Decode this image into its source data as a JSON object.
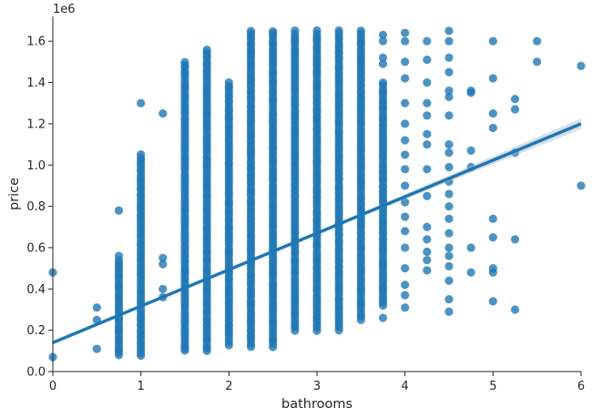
{
  "chart_data": {
    "type": "scatter",
    "title": "",
    "xlabel": "bathrooms",
    "ylabel": "price",
    "y_offset_label": "1e6",
    "xlim": [
      0,
      6
    ],
    "ylim": [
      0,
      1.72
    ],
    "x_ticks": [
      0,
      1,
      2,
      3,
      4,
      5,
      6
    ],
    "x_tick_labels": [
      "0",
      "1",
      "2",
      "3",
      "4",
      "5",
      "6"
    ],
    "y_ticks": [
      0.0,
      0.2,
      0.4,
      0.6,
      0.8,
      1.0,
      1.2,
      1.4,
      1.6
    ],
    "y_tick_labels": [
      "0.0",
      "0.2",
      "0.4",
      "0.6",
      "0.8",
      "1.0",
      "1.2",
      "1.4",
      "1.6"
    ],
    "grid": false,
    "legend": "none",
    "point_color": "#1f77b4",
    "line_color": "#1f77b4",
    "columns": [
      {
        "x": 0.75,
        "min": 0.08,
        "max": 0.54
      },
      {
        "x": 1.0,
        "min": 0.075,
        "max": 1.05
      },
      {
        "x": 1.5,
        "min": 0.1,
        "max": 1.5
      },
      {
        "x": 1.75,
        "min": 0.1,
        "max": 1.56
      },
      {
        "x": 2.0,
        "min": 0.13,
        "max": 1.4
      },
      {
        "x": 2.25,
        "min": 0.12,
        "max": 1.65
      },
      {
        "x": 2.5,
        "min": 0.12,
        "max": 1.65
      },
      {
        "x": 2.75,
        "min": 0.2,
        "max": 1.65
      },
      {
        "x": 3.0,
        "min": 0.2,
        "max": 1.65
      },
      {
        "x": 3.25,
        "min": 0.2,
        "max": 1.65
      },
      {
        "x": 3.5,
        "min": 0.25,
        "max": 1.65
      },
      {
        "x": 3.75,
        "min": 0.32,
        "max": 1.4
      }
    ],
    "points": [
      {
        "x": 0.0,
        "y": 0.48
      },
      {
        "x": 0.0,
        "y": 0.07
      },
      {
        "x": 0.5,
        "y": 0.31
      },
      {
        "x": 0.5,
        "y": 0.25
      },
      {
        "x": 0.5,
        "y": 0.11
      },
      {
        "x": 0.75,
        "y": 0.78
      },
      {
        "x": 0.75,
        "y": 0.56
      },
      {
        "x": 1.0,
        "y": 1.3
      },
      {
        "x": 1.25,
        "y": 1.25
      },
      {
        "x": 1.25,
        "y": 0.55
      },
      {
        "x": 1.25,
        "y": 0.52
      },
      {
        "x": 1.25,
        "y": 0.4
      },
      {
        "x": 1.25,
        "y": 0.36
      },
      {
        "x": 3.75,
        "y": 1.63
      },
      {
        "x": 3.75,
        "y": 1.6
      },
      {
        "x": 3.75,
        "y": 1.52
      },
      {
        "x": 3.75,
        "y": 1.49
      },
      {
        "x": 3.75,
        "y": 0.26
      },
      {
        "x": 4.0,
        "y": 1.64
      },
      {
        "x": 4.0,
        "y": 1.6
      },
      {
        "x": 4.0,
        "y": 1.5
      },
      {
        "x": 4.0,
        "y": 1.42
      },
      {
        "x": 4.0,
        "y": 1.3
      },
      {
        "x": 4.0,
        "y": 1.2
      },
      {
        "x": 4.0,
        "y": 1.12
      },
      {
        "x": 4.0,
        "y": 1.05
      },
      {
        "x": 4.0,
        "y": 0.98
      },
      {
        "x": 4.0,
        "y": 0.9
      },
      {
        "x": 4.0,
        "y": 0.82
      },
      {
        "x": 4.0,
        "y": 0.75
      },
      {
        "x": 4.0,
        "y": 0.68
      },
      {
        "x": 4.0,
        "y": 0.6
      },
      {
        "x": 4.0,
        "y": 0.5
      },
      {
        "x": 4.0,
        "y": 0.42
      },
      {
        "x": 4.0,
        "y": 0.37
      },
      {
        "x": 4.0,
        "y": 0.31
      },
      {
        "x": 4.25,
        "y": 1.6
      },
      {
        "x": 4.25,
        "y": 1.51
      },
      {
        "x": 4.25,
        "y": 1.4
      },
      {
        "x": 4.25,
        "y": 1.3
      },
      {
        "x": 4.25,
        "y": 1.24
      },
      {
        "x": 4.25,
        "y": 1.15
      },
      {
        "x": 4.25,
        "y": 1.1
      },
      {
        "x": 4.25,
        "y": 0.98
      },
      {
        "x": 4.25,
        "y": 0.85
      },
      {
        "x": 4.25,
        "y": 0.7
      },
      {
        "x": 4.25,
        "y": 0.64
      },
      {
        "x": 4.25,
        "y": 0.58
      },
      {
        "x": 4.25,
        "y": 0.54
      },
      {
        "x": 4.25,
        "y": 0.49
      },
      {
        "x": 4.5,
        "y": 1.65
      },
      {
        "x": 4.5,
        "y": 1.6
      },
      {
        "x": 4.5,
        "y": 1.52
      },
      {
        "x": 4.5,
        "y": 1.45
      },
      {
        "x": 4.5,
        "y": 1.36
      },
      {
        "x": 4.5,
        "y": 1.33
      },
      {
        "x": 4.5,
        "y": 1.24
      },
      {
        "x": 4.5,
        "y": 1.1
      },
      {
        "x": 4.5,
        "y": 1.06
      },
      {
        "x": 4.5,
        "y": 0.99
      },
      {
        "x": 4.5,
        "y": 0.92
      },
      {
        "x": 4.5,
        "y": 0.86
      },
      {
        "x": 4.5,
        "y": 0.8
      },
      {
        "x": 4.5,
        "y": 0.74
      },
      {
        "x": 4.5,
        "y": 0.67
      },
      {
        "x": 4.5,
        "y": 0.6
      },
      {
        "x": 4.5,
        "y": 0.56
      },
      {
        "x": 4.5,
        "y": 0.51
      },
      {
        "x": 4.5,
        "y": 0.44
      },
      {
        "x": 4.5,
        "y": 0.35
      },
      {
        "x": 4.5,
        "y": 0.29
      },
      {
        "x": 4.75,
        "y": 1.36
      },
      {
        "x": 4.75,
        "y": 1.35
      },
      {
        "x": 4.75,
        "y": 1.07
      },
      {
        "x": 4.75,
        "y": 0.99
      },
      {
        "x": 4.75,
        "y": 0.6
      },
      {
        "x": 4.75,
        "y": 0.48
      },
      {
        "x": 5.0,
        "y": 1.6
      },
      {
        "x": 5.0,
        "y": 1.42
      },
      {
        "x": 5.0,
        "y": 1.25
      },
      {
        "x": 5.0,
        "y": 1.18
      },
      {
        "x": 5.0,
        "y": 0.74
      },
      {
        "x": 5.0,
        "y": 0.65
      },
      {
        "x": 5.0,
        "y": 0.5
      },
      {
        "x": 5.0,
        "y": 0.48
      },
      {
        "x": 5.0,
        "y": 0.34
      },
      {
        "x": 5.25,
        "y": 1.32
      },
      {
        "x": 5.25,
        "y": 1.27
      },
      {
        "x": 5.25,
        "y": 1.06
      },
      {
        "x": 5.25,
        "y": 0.64
      },
      {
        "x": 5.25,
        "y": 0.3
      },
      {
        "x": 5.5,
        "y": 1.6
      },
      {
        "x": 5.5,
        "y": 1.5
      },
      {
        "x": 6.0,
        "y": 1.48
      },
      {
        "x": 6.0,
        "y": 0.9
      }
    ],
    "regression": {
      "x": [
        0,
        6
      ],
      "y": [
        0.14,
        1.2
      ]
    }
  }
}
